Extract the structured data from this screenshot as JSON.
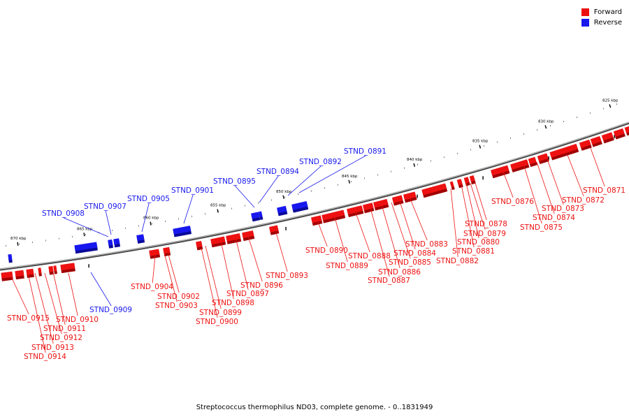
{
  "colors": {
    "forward": "#ee1111",
    "reverse": "#1818ee",
    "backbone": "#666666"
  },
  "legend": [
    {
      "label": "Forward",
      "color": "#ee1111"
    },
    {
      "label": "Reverse",
      "color": "#1818ee"
    }
  ],
  "caption": "Streptococcus thermophilus ND03, complete genome. - 0..1831949",
  "ticks": [
    "825 kbp",
    "830 kbp",
    "835 kbp",
    "840 kbp",
    "845 kbp",
    "850 kbp",
    "855 kbp",
    "860 kbp",
    "865 kbp",
    "870 kbp"
  ],
  "genes": [
    {
      "id": "STND_0871",
      "strand": "forward"
    },
    {
      "id": "STND_0872",
      "strand": "forward"
    },
    {
      "id": "STND_0873",
      "strand": "forward"
    },
    {
      "id": "STND_0874",
      "strand": "forward"
    },
    {
      "id": "STND_0875",
      "strand": "forward"
    },
    {
      "id": "STND_0876",
      "strand": "forward"
    },
    {
      "id": "STND_0878",
      "strand": "forward"
    },
    {
      "id": "STND_0879",
      "strand": "forward"
    },
    {
      "id": "STND_0880",
      "strand": "forward"
    },
    {
      "id": "STND_0881",
      "strand": "forward"
    },
    {
      "id": "STND_0882",
      "strand": "forward"
    },
    {
      "id": "STND_0883",
      "strand": "forward"
    },
    {
      "id": "STND_0884",
      "strand": "forward"
    },
    {
      "id": "STND_0885",
      "strand": "forward"
    },
    {
      "id": "STND_0886",
      "strand": "forward"
    },
    {
      "id": "STND_0887",
      "strand": "forward"
    },
    {
      "id": "STND_0888",
      "strand": "forward"
    },
    {
      "id": "STND_0889",
      "strand": "forward"
    },
    {
      "id": "STND_0890",
      "strand": "forward"
    },
    {
      "id": "STND_0891",
      "strand": "reverse"
    },
    {
      "id": "STND_0892",
      "strand": "reverse"
    },
    {
      "id": "STND_0893",
      "strand": "forward"
    },
    {
      "id": "STND_0894",
      "strand": "reverse"
    },
    {
      "id": "STND_0895",
      "strand": "reverse"
    },
    {
      "id": "STND_0896",
      "strand": "forward"
    },
    {
      "id": "STND_0897",
      "strand": "forward"
    },
    {
      "id": "STND_0898",
      "strand": "forward"
    },
    {
      "id": "STND_0899",
      "strand": "forward"
    },
    {
      "id": "STND_0900",
      "strand": "forward"
    },
    {
      "id": "STND_0901",
      "strand": "reverse"
    },
    {
      "id": "STND_0902",
      "strand": "forward"
    },
    {
      "id": "STND_0903",
      "strand": "forward"
    },
    {
      "id": "STND_0904",
      "strand": "forward"
    },
    {
      "id": "STND_0905",
      "strand": "reverse"
    },
    {
      "id": "STND_0907",
      "strand": "reverse"
    },
    {
      "id": "STND_0908",
      "strand": "reverse"
    },
    {
      "id": "STND_0909",
      "strand": "reverse"
    },
    {
      "id": "STND_0910",
      "strand": "forward"
    },
    {
      "id": "STND_0911",
      "strand": "forward"
    },
    {
      "id": "STND_0912",
      "strand": "forward"
    },
    {
      "id": "STND_0913",
      "strand": "forward"
    },
    {
      "id": "STND_0914",
      "strand": "forward"
    },
    {
      "id": "STND_0915",
      "strand": "forward"
    }
  ]
}
